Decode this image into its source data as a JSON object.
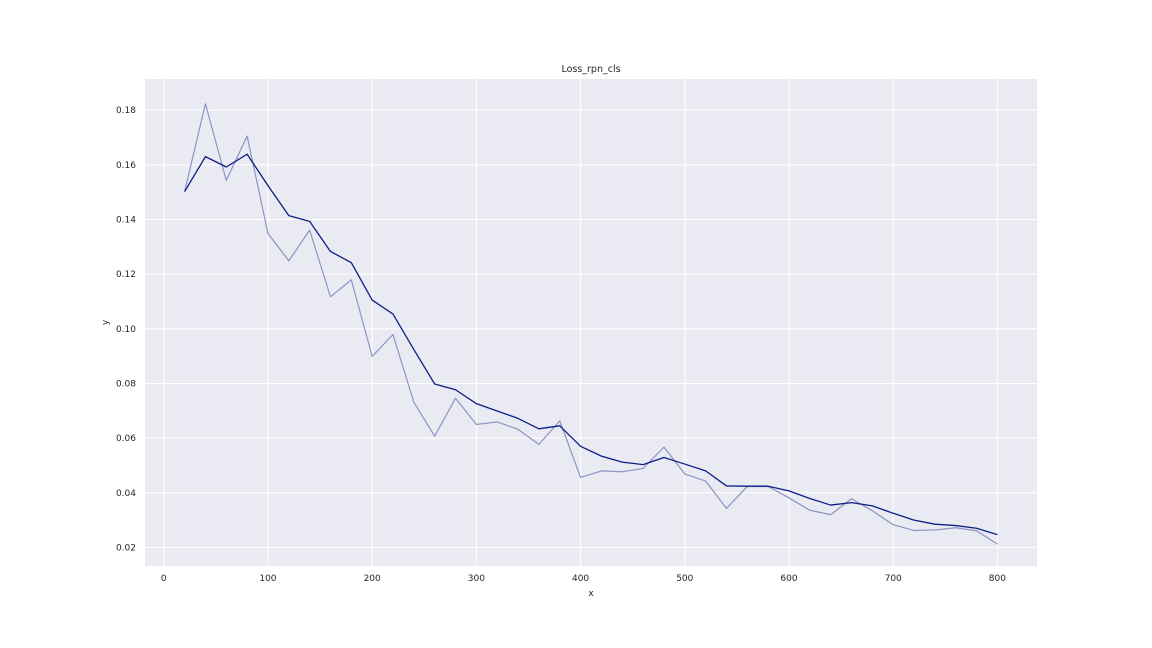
{
  "chart_data": {
    "type": "line",
    "title": "Loss_rpn_cls",
    "xlabel": "x",
    "ylabel": "y",
    "xlim": [
      -18,
      838
    ],
    "ylim": [
      0.0132,
      0.1914
    ],
    "xticks": [
      0,
      100,
      200,
      300,
      400,
      500,
      600,
      700,
      800
    ],
    "yticks": [
      0.02,
      0.04,
      0.06,
      0.08,
      0.1,
      0.12,
      0.14,
      0.16,
      0.18
    ],
    "xtick_labels": [
      "0",
      "100",
      "200",
      "300",
      "400",
      "500",
      "600",
      "700",
      "800"
    ],
    "ytick_labels": [
      "0.02",
      "0.04",
      "0.06",
      "0.08",
      "0.10",
      "0.12",
      "0.14",
      "0.16",
      "0.18"
    ],
    "grid": true,
    "background": "#eaeaf2",
    "x": [
      20,
      40,
      60,
      80,
      100,
      120,
      140,
      160,
      180,
      200,
      220,
      240,
      260,
      280,
      300,
      320,
      340,
      360,
      380,
      400,
      420,
      440,
      460,
      480,
      500,
      520,
      540,
      560,
      580,
      600,
      620,
      640,
      660,
      680,
      700,
      720,
      740,
      760,
      780,
      800
    ],
    "series": [
      {
        "color": "#8e93c4",
        "values": [
          0.1502,
          0.1823,
          0.1543,
          0.1705,
          0.1349,
          0.1249,
          0.1361,
          0.1117,
          0.1179,
          0.0899,
          0.0979,
          0.0731,
          0.0607,
          0.0746,
          0.065,
          0.0659,
          0.0632,
          0.0577,
          0.0663,
          0.0456,
          0.048,
          0.0477,
          0.0489,
          0.0567,
          0.0469,
          0.0443,
          0.0343,
          0.0423,
          0.0423,
          0.0381,
          0.0336,
          0.032,
          0.0378,
          0.0334,
          0.0283,
          0.0262,
          0.0264,
          0.0272,
          0.0261,
          0.0212
        ]
      },
      {
        "color": "#0b1f86",
        "values": [
          0.1502,
          0.163,
          0.1592,
          0.1639,
          0.1524,
          0.1414,
          0.1393,
          0.1283,
          0.1242,
          0.1105,
          0.1054,
          0.0924,
          0.0798,
          0.0777,
          0.0726,
          0.0699,
          0.0672,
          0.0634,
          0.0645,
          0.057,
          0.0534,
          0.0512,
          0.0503,
          0.0529,
          0.0505,
          0.048,
          0.0425,
          0.0424,
          0.0424,
          0.0407,
          0.0379,
          0.0355,
          0.0364,
          0.0352,
          0.0325,
          0.03,
          0.0285,
          0.028,
          0.027,
          0.0247
        ]
      }
    ]
  }
}
